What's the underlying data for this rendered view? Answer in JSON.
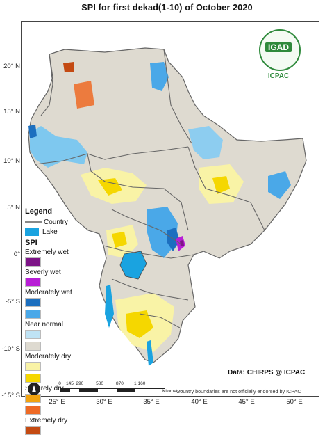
{
  "title": "SPI  for    first dekad(1-10)  of October 2020",
  "map": {
    "latitude_labels": [
      "20° N",
      "15° N",
      "10° N",
      "5° N",
      "0°",
      "-5° S",
      "-10° S",
      "-15° S"
    ],
    "longitude_labels": [
      "25° E",
      "30° E",
      "35° E",
      "40° E",
      "45° E",
      "50° E"
    ]
  },
  "legend": {
    "title": "Legend",
    "country_label": "Country",
    "lake_label": "Lake",
    "spi_title": "SPI",
    "items": [
      {
        "label": "Extremely wet",
        "color": "#7d1487"
      },
      {
        "label": "Severly wet",
        "color": "#b81ed6"
      },
      {
        "label": "Moderately wet",
        "color": "#1c6fbf"
      },
      {
        "label": "",
        "color": "#4aa8e8"
      },
      {
        "label": "Near normal",
        "color": "#bfe3f5"
      },
      {
        "label": "",
        "color": "#dedad0"
      },
      {
        "label": "Moderately dry",
        "color": "#f9f3a6"
      },
      {
        "label": "",
        "color": "#f5d700"
      },
      {
        "label": "Severely dry",
        "color": "#f2a30f"
      },
      {
        "label": "",
        "color": "#ee6a25"
      },
      {
        "label": "Extremely dry",
        "color": "#c44a12"
      }
    ]
  },
  "credit": "Data: CHIRPS @ ICPAC",
  "disclaimer": "Country boundaries are not officially endorsed by ICPAC",
  "logo": {
    "igad": "IGAD",
    "icpac": "ICPAC"
  },
  "scale": {
    "ticks": [
      "0",
      "145",
      "290",
      "580",
      "870",
      "1,160"
    ],
    "unit": "Kilometers"
  },
  "colors": {
    "near_normal": "#dedad0",
    "lake": "#1aa3e0",
    "border": "#666666"
  }
}
